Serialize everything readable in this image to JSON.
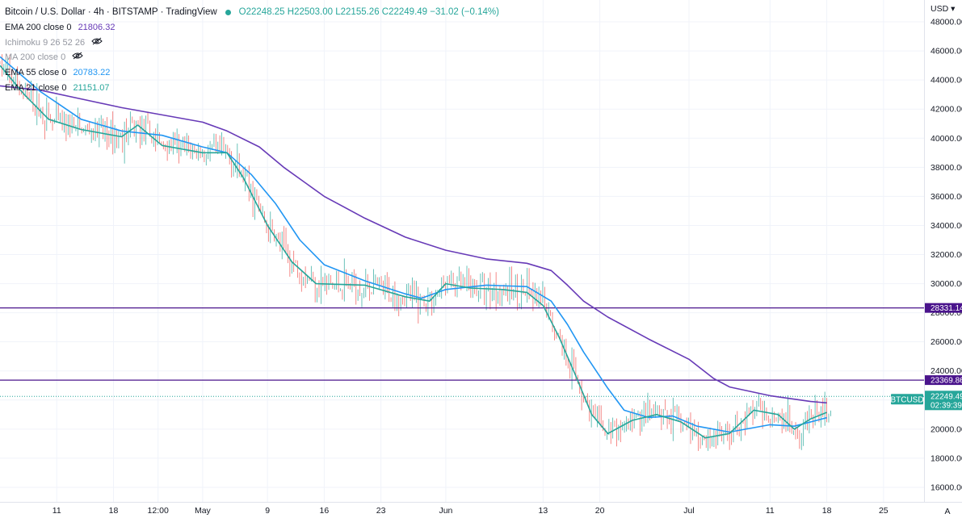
{
  "header": {
    "title": "Bitcoin / U.S. Dollar · 4h · BITSTAMP · TradingView",
    "ohlc": "O22248.25 H22503.00 L22155.26 C22249.49 −31.02 (−0.14%)"
  },
  "indicators": [
    {
      "label": "EMA 200 close 0",
      "value": "21806.32",
      "color": "#673ab7",
      "hidden": false
    },
    {
      "label": "Ichimoku 9 26 52 26",
      "value": "",
      "color": "#9598a1",
      "hidden": true
    },
    {
      "label": "MA 200 close 0",
      "value": "",
      "color": "#9598a1",
      "hidden": true
    },
    {
      "label": "EMA 55 close 0",
      "value": "20783.22",
      "color": "#2196f3",
      "hidden": false
    },
    {
      "label": "EMA 21 close 0",
      "value": "21151.07",
      "color": "#26a69a",
      "hidden": false
    }
  ],
  "axis": {
    "currency": "USD",
    "y_ticks": [
      "48000.00",
      "46000.00",
      "44000.00",
      "42000.00",
      "40000.00",
      "38000.00",
      "36000.00",
      "34000.00",
      "32000.00",
      "30000.00",
      "28000.00",
      "26000.00",
      "24000.00",
      "22000.00",
      "20000.00",
      "18000.00",
      "16000.00"
    ],
    "x_ticks": [
      "11",
      "18",
      "12:00",
      "May",
      "9",
      "16",
      "23",
      "Jun",
      "13",
      "20",
      "Jul",
      "11",
      "18",
      "25"
    ],
    "auto_label": "A"
  },
  "levels": [
    {
      "value": 28331.14,
      "label": "28331.14",
      "color": "#4a148c"
    },
    {
      "value": 23369.86,
      "label": "23369.86",
      "color": "#4a148c"
    }
  ],
  "price_tag": {
    "symbol": "BTCUSD",
    "price": "22249.49",
    "countdown": "02:39:39",
    "color": "#26a69a"
  },
  "chart_data": {
    "type": "line",
    "title": "",
    "xlabel": "",
    "ylabel": "",
    "ylim": [
      15000,
      49500
    ],
    "x_range": [
      0,
      114
    ],
    "x_ticks": [
      {
        "label": "11",
        "x": 7
      },
      {
        "label": "18",
        "x": 14
      },
      {
        "label": "12:00",
        "x": 19.5
      },
      {
        "label": "May",
        "x": 25
      },
      {
        "label": "9",
        "x": 33
      },
      {
        "label": "16",
        "x": 40
      },
      {
        "label": "23",
        "x": 47
      },
      {
        "label": "Jun",
        "x": 55
      },
      {
        "label": "13",
        "x": 67
      },
      {
        "label": "20",
        "x": 74
      },
      {
        "label": "Jul",
        "x": 85
      },
      {
        "label": "11",
        "x": 95
      },
      {
        "label": "18",
        "x": 102
      },
      {
        "label": "25",
        "x": 109
      }
    ],
    "series": [
      {
        "name": "EMA 200 close 0",
        "color": "#673ab7",
        "points": [
          [
            0,
            43600
          ],
          [
            5,
            43300
          ],
          [
            10,
            42700
          ],
          [
            15,
            42100
          ],
          [
            20,
            41600
          ],
          [
            25,
            41100
          ],
          [
            28,
            40500
          ],
          [
            32,
            39400
          ],
          [
            35,
            38000
          ],
          [
            40,
            36000
          ],
          [
            45,
            34500
          ],
          [
            50,
            33200
          ],
          [
            55,
            32300
          ],
          [
            60,
            31700
          ],
          [
            65,
            31400
          ],
          [
            68,
            30900
          ],
          [
            70,
            29900
          ],
          [
            72,
            28800
          ],
          [
            75,
            27700
          ],
          [
            80,
            26200
          ],
          [
            85,
            24800
          ],
          [
            88,
            23500
          ],
          [
            90,
            22900
          ],
          [
            95,
            22300
          ],
          [
            100,
            21900
          ],
          [
            102,
            21806
          ]
        ]
      },
      {
        "name": "EMA 55 close 0",
        "color": "#2196f3",
        "points": [
          [
            0,
            45600
          ],
          [
            5,
            43200
          ],
          [
            10,
            41300
          ],
          [
            15,
            40500
          ],
          [
            20,
            40200
          ],
          [
            25,
            39400
          ],
          [
            28,
            39000
          ],
          [
            31,
            37500
          ],
          [
            34,
            35500
          ],
          [
            37,
            33000
          ],
          [
            40,
            31300
          ],
          [
            45,
            30200
          ],
          [
            50,
            29300
          ],
          [
            52,
            29000
          ],
          [
            55,
            29600
          ],
          [
            60,
            29900
          ],
          [
            65,
            29800
          ],
          [
            68,
            28800
          ],
          [
            70,
            27200
          ],
          [
            72,
            25300
          ],
          [
            75,
            22800
          ],
          [
            77,
            21300
          ],
          [
            80,
            20800
          ],
          [
            83,
            20900
          ],
          [
            86,
            20200
          ],
          [
            90,
            19800
          ],
          [
            95,
            20300
          ],
          [
            98,
            20200
          ],
          [
            102,
            20783
          ]
        ]
      },
      {
        "name": "EMA 21 close 0",
        "color": "#26a69a",
        "points": [
          [
            0,
            45000
          ],
          [
            3,
            43000
          ],
          [
            6,
            41300
          ],
          [
            10,
            40600
          ],
          [
            15,
            40100
          ],
          [
            17,
            40900
          ],
          [
            20,
            39500
          ],
          [
            25,
            39000
          ],
          [
            28,
            39000
          ],
          [
            30,
            37300
          ],
          [
            33,
            34000
          ],
          [
            36,
            31500
          ],
          [
            39,
            30000
          ],
          [
            45,
            29900
          ],
          [
            50,
            29100
          ],
          [
            53,
            28800
          ],
          [
            55,
            30000
          ],
          [
            58,
            29700
          ],
          [
            62,
            29600
          ],
          [
            65,
            29400
          ],
          [
            67,
            28500
          ],
          [
            69,
            26300
          ],
          [
            71,
            23700
          ],
          [
            73,
            21000
          ],
          [
            75,
            19700
          ],
          [
            78,
            20600
          ],
          [
            81,
            21000
          ],
          [
            84,
            20500
          ],
          [
            87,
            19400
          ],
          [
            90,
            19700
          ],
          [
            93,
            21300
          ],
          [
            96,
            21000
          ],
          [
            98,
            20000
          ],
          [
            100,
            20700
          ],
          [
            102,
            21151
          ]
        ]
      }
    ]
  }
}
